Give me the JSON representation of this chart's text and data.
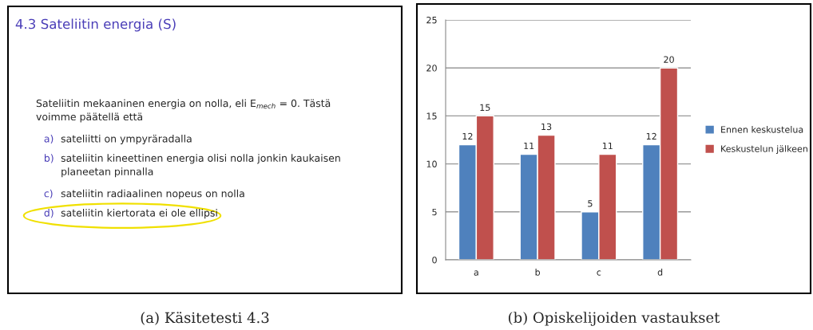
{
  "chart_data": [
    {
      "type": "other",
      "title": "4.3 Sateliitin energia (S)",
      "xlabel": "(a) Käsitetesti 4.3",
      "annotations": [
        "Sateliitin mekaaninen energia on nolla, eli E$_{mech}$ = 0. Tästä\nvoimme päätellä että",
        "a) sateliitti on ympyräradalla",
        "b) sateliitin kineettinen energia olisi nolla jonkin kaukaisen\nplaneetan pinnalla",
        "c) sateliitin radiaalinen nopeus on nolla",
        "d) sateliitin kiertorata ei ole ellipsi"
      ]
    },
    {
      "type": "bar",
      "xlabel": "(b) Opiskelijoiden vastaukset",
      "categories": [
        "a",
        "b",
        "c",
        "d"
      ],
      "series": [
        {
          "name": "Ennen keskustelua",
          "color": "#4f81bd",
          "values": [
            12,
            11,
            5,
            12
          ]
        },
        {
          "name": "Keskustelun jälkeen",
          "color": "#c0504d",
          "values": [
            15,
            13,
            11,
            20
          ]
        }
      ],
      "ylim": [
        0,
        25
      ],
      "yticks": [
        0,
        5,
        10,
        15,
        20,
        25
      ],
      "grid": "y",
      "legend": "right",
      "data_labels": true
    }
  ]
}
